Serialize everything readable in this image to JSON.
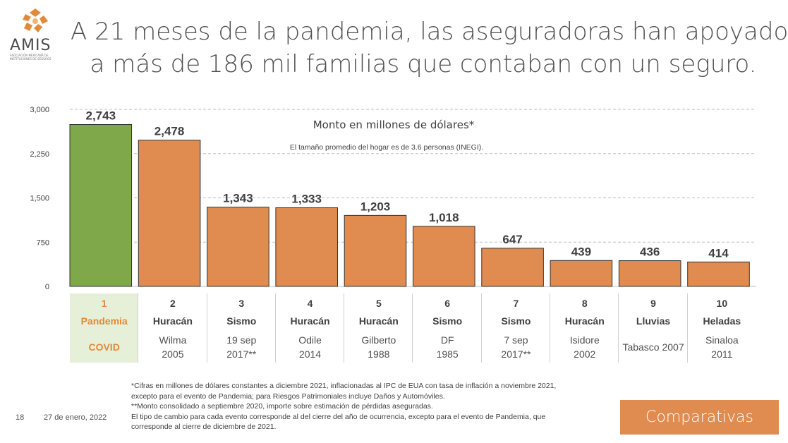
{
  "brand": {
    "name": "AMIS",
    "subtitle": "ASOCIACIÓN MEXICANA DE INSTITUCIONES DE SEGUROS",
    "color": "#e08a3c"
  },
  "title": {
    "line1": "A 21 meses de la pandemia, las aseguradoras han apoyado",
    "line2": "a más de 186 mil familias que contaban con un seguro."
  },
  "chart_data": {
    "type": "bar",
    "title": "Monto en millones de dólares*",
    "subtitle": "El tamaño promedio del hogar es de 3.6 personas (INEGI).",
    "categories": [
      "1",
      "2",
      "3",
      "4",
      "5",
      "6",
      "7",
      "8",
      "9",
      "10"
    ],
    "values": [
      2743,
      2478,
      1343,
      1333,
      1203,
      1018,
      647,
      439,
      436,
      414
    ],
    "value_labels": [
      "2,743",
      "2,478",
      "1,343",
      "1,333",
      "1,203",
      "1,018",
      "647",
      "439",
      "436",
      "414"
    ],
    "yticks": [
      "0",
      "750",
      "1,500",
      "2,250",
      "3,000"
    ],
    "ytick_values": [
      0,
      750,
      1500,
      2250,
      3000
    ],
    "ylim": [
      0,
      3000
    ],
    "grid": true,
    "colors": {
      "highlight": "#7fa84a",
      "bar": "#e08b4f",
      "edge": "#333333",
      "grid": "#bdbdbd"
    },
    "highlight_index": 0
  },
  "events": [
    {
      "rank": "1",
      "type": "Pandemia",
      "desc": [
        "COVID"
      ]
    },
    {
      "rank": "2",
      "type": "Huracán",
      "desc": [
        "Wilma",
        "2005"
      ]
    },
    {
      "rank": "3",
      "type": "Sismo",
      "desc": [
        "19 sep",
        "2017**"
      ]
    },
    {
      "rank": "4",
      "type": "Huracán",
      "desc": [
        "Odile",
        "2014"
      ]
    },
    {
      "rank": "5",
      "type": "Huracán",
      "desc": [
        "Gilberto",
        "1988"
      ]
    },
    {
      "rank": "6",
      "type": "Sismo",
      "desc": [
        "DF",
        "1985"
      ]
    },
    {
      "rank": "7",
      "type": "Sismo",
      "desc": [
        "7 sep",
        "2017**"
      ]
    },
    {
      "rank": "8",
      "type": "Huracán",
      "desc": [
        "Isidore",
        "2002"
      ]
    },
    {
      "rank": "9",
      "type": "Lluvias",
      "desc": [
        "Tabasco 2007"
      ]
    },
    {
      "rank": "10",
      "type": "Heladas",
      "desc": [
        "Sinaloa",
        "2011"
      ]
    }
  ],
  "notes": [
    "*Cifras en millones de dólares constantes a diciembre 2021, inflacionadas al IPC de EUA con tasa de inflación a noviembre 2021,",
    "excepto para el evento de Pandemia; para Riesgos Patrimoniales incluye Daños y Automóviles.",
    "**Monto consolidado a septiembre 2020, importe sobre estimación de pérdidas aseguradas.",
    "El tipo de cambio para cada evento corresponde al del cierre del año de ocurrencia, excepto para el evento de Pandemia, que",
    "corresponde al cierre de diciembre de 2021."
  ],
  "footer": {
    "page": "18",
    "date": "27 de enero, 2022",
    "section": "Comparativas"
  }
}
